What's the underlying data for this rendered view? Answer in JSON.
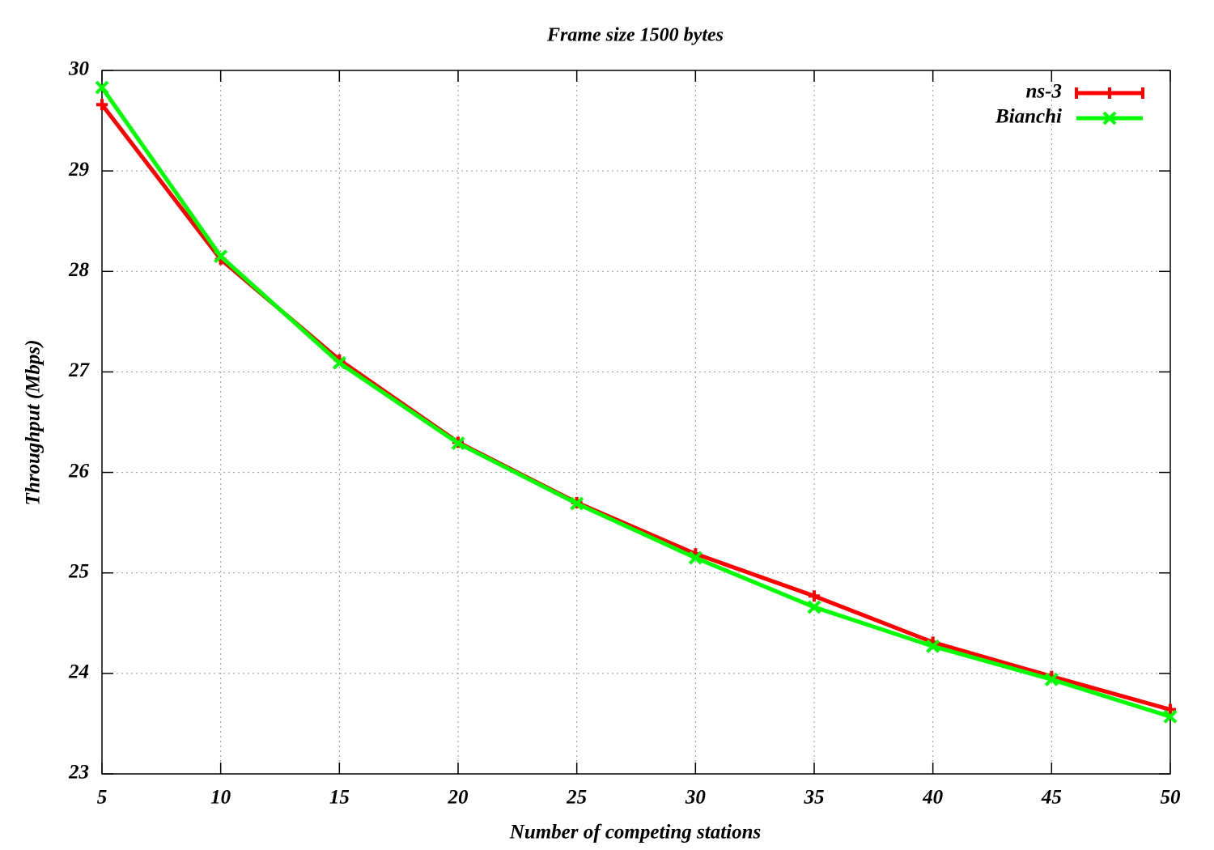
{
  "chart_data": {
    "type": "line",
    "title": "Frame size 1500 bytes",
    "x_label": "Number of competing stations",
    "y_label": "Throughput (Mbps)",
    "x": [
      5,
      10,
      15,
      20,
      25,
      30,
      35,
      40,
      45,
      50
    ],
    "series": [
      {
        "name": "ns-3",
        "color": "#ff0000",
        "marker": "plus",
        "values": [
          29.66,
          28.12,
          27.12,
          26.3,
          25.7,
          25.19,
          24.77,
          24.31,
          23.97,
          23.64
        ]
      },
      {
        "name": "Bianchi",
        "color": "#00ff00",
        "marker": "cross",
        "values": [
          29.83,
          28.15,
          27.09,
          26.29,
          25.69,
          25.15,
          24.66,
          24.27,
          23.94,
          23.57
        ]
      }
    ],
    "xlim": [
      5,
      50
    ],
    "xticks": [
      5,
      10,
      15,
      20,
      25,
      30,
      35,
      40,
      45,
      50
    ],
    "ylim": [
      23,
      30
    ],
    "yticks": [
      23,
      24,
      25,
      26,
      27,
      28,
      29,
      30
    ],
    "grid": true,
    "legend": "top-right"
  }
}
